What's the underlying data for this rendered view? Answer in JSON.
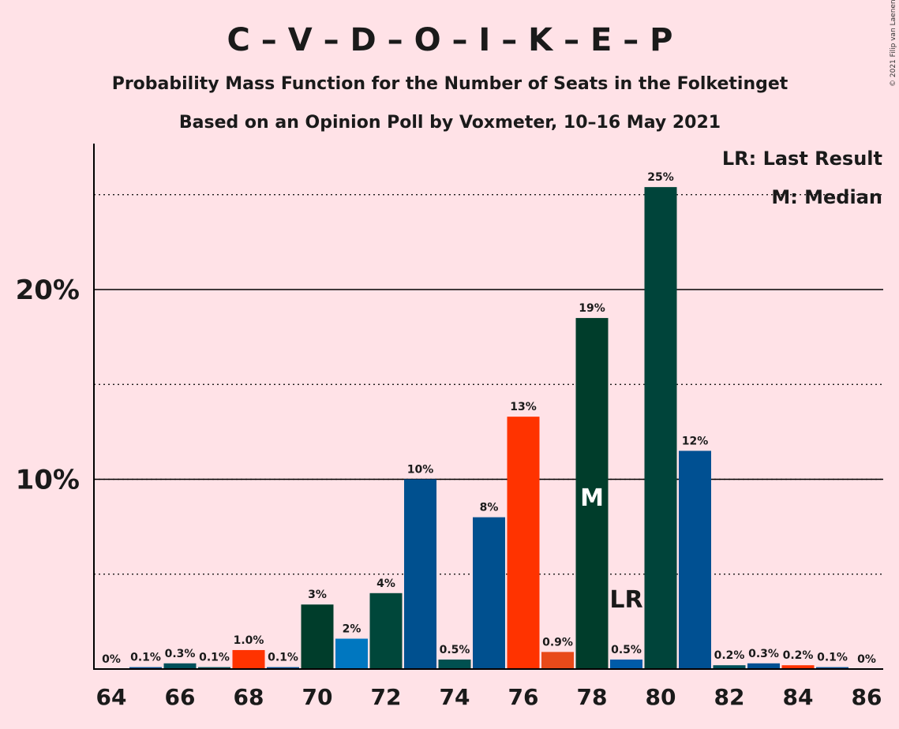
{
  "title": "C – V – D – O – I – K – E – P",
  "subtitle1": "Probability Mass Function for the Number of Seats in the Folketinget",
  "subtitle2": "Based on an Opinion Poll by Voxmeter, 10–16 May 2021",
  "copyright": "© 2021 Filip van Laenen",
  "legend": {
    "lr": "LR: Last Result",
    "m": "M: Median"
  },
  "markers": {
    "median_label": "M",
    "lr_label": "LR",
    "median_seat": 78,
    "last_result_seat": 79
  },
  "chart_data": {
    "type": "bar",
    "xlabel": "",
    "ylabel": "",
    "x": [
      64,
      65,
      66,
      67,
      68,
      69,
      70,
      71,
      72,
      73,
      74,
      75,
      76,
      77,
      78,
      79,
      80,
      81,
      82,
      83,
      84,
      85,
      86
    ],
    "values": [
      0,
      0.1,
      0.3,
      0.1,
      1.0,
      0.1,
      3.4,
      1.6,
      4.0,
      10.0,
      0.5,
      8.0,
      13.3,
      0.9,
      18.5,
      0.5,
      25.4,
      11.5,
      0.2,
      0.3,
      0.2,
      0.1,
      0
    ],
    "value_labels": [
      "0%",
      "0.1%",
      "0.3%",
      "0.1%",
      "1.0%",
      "0.1%",
      "3%",
      "2%",
      "4%",
      "10%",
      "0.5%",
      "8%",
      "13%",
      "0.9%",
      "19%",
      "0.5%",
      "25%",
      "12%",
      "0.2%",
      "0.3%",
      "0.2%",
      "0.1%",
      "0%"
    ],
    "colors": [
      "#00505A",
      "#005092",
      "#00505A",
      "#00505A",
      "#FF3300",
      "#005092",
      "#003D2B",
      "#0077C0",
      "#00473A",
      "#00508F",
      "#005050",
      "#00508F",
      "#FF3300",
      "#E84A1A",
      "#003D2B",
      "#005BA8",
      "#00443A",
      "#005092",
      "#00505A",
      "#005092",
      "#FF3300",
      "#005092",
      "#005092"
    ],
    "x_tick_labels": [
      "64",
      "66",
      "68",
      "70",
      "72",
      "74",
      "76",
      "78",
      "80",
      "82",
      "84",
      "86"
    ],
    "y_tick_labels": [
      "10%",
      "20%"
    ],
    "ylim": [
      0,
      27.6
    ],
    "gridlines_solid": [
      10,
      20
    ],
    "gridlines_dotted": [
      5,
      10,
      15,
      25
    ],
    "legend_position": "top-right"
  }
}
